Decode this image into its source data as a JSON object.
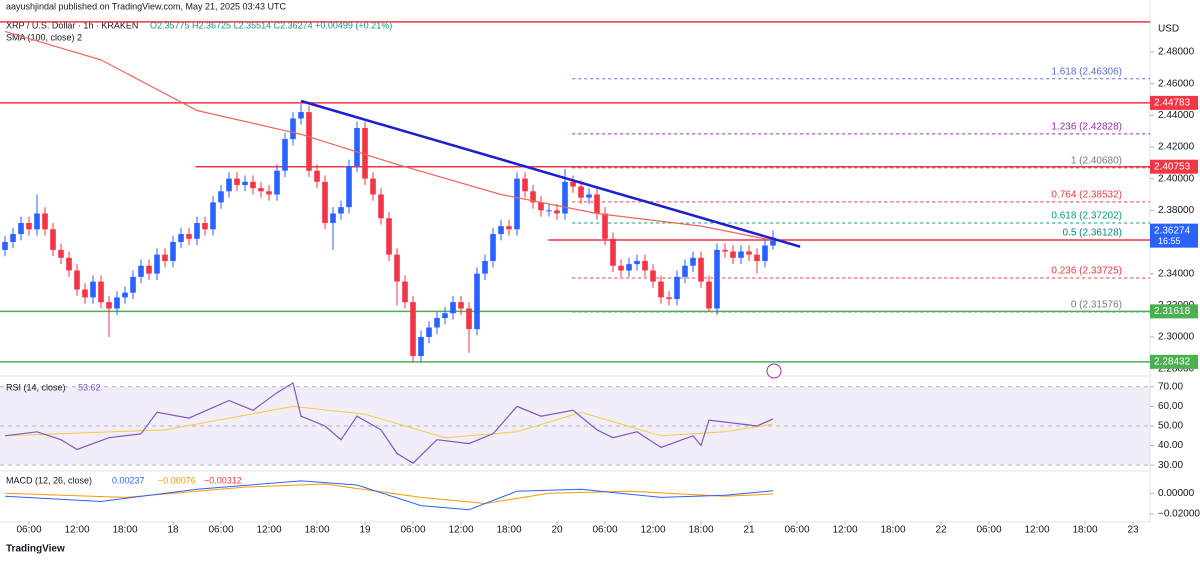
{
  "chart_data": {
    "type": "candlestick",
    "publisher": "aayushjindal published on TradingView.com, May 21, 2025 03:43 UTC",
    "symbol": "XRP / U.S. Dollar · 1h · KRAKEN",
    "ohlc_text": "O2.35775 H2.36725 L2.35514 C2.36274 +0.00499 (+0.21%)",
    "sma_label": "SMA (100, close) 2",
    "currency": "USD",
    "countdown": "16:55",
    "brand": "TradingView",
    "up_color": "#2962ff",
    "down_color": "#f23645",
    "xlim": [
      -0.625,
      143.125
    ],
    "xticks": [
      {
        "value": 3,
        "label": "06:00"
      },
      {
        "value": 9,
        "label": "12:00"
      },
      {
        "value": 15,
        "label": "18:00"
      },
      {
        "value": 21,
        "label": "18"
      },
      {
        "value": 27,
        "label": "06:00"
      },
      {
        "value": 33,
        "label": "12:00"
      },
      {
        "value": 39,
        "label": "18:00"
      },
      {
        "value": 45,
        "label": "19"
      },
      {
        "value": 51,
        "label": "06:00"
      },
      {
        "value": 57,
        "label": "12:00"
      },
      {
        "value": 63,
        "label": "18:00"
      },
      {
        "value": 69,
        "label": "20"
      },
      {
        "value": 75,
        "label": "06:00"
      },
      {
        "value": 81,
        "label": "12:00"
      },
      {
        "value": 87,
        "label": "18:00"
      },
      {
        "value": 93,
        "label": "21"
      },
      {
        "value": 99,
        "label": "06:00"
      },
      {
        "value": 105,
        "label": "12:00"
      },
      {
        "value": 111,
        "label": "18:00"
      },
      {
        "value": 117,
        "label": "22"
      },
      {
        "value": 123,
        "label": "06:00"
      },
      {
        "value": 129,
        "label": "12:00"
      },
      {
        "value": 135,
        "label": "18:00"
      },
      {
        "value": 141,
        "label": "23"
      }
    ],
    "ylim": [
      2.276,
      2.5128
    ],
    "yticks": [
      {
        "value": 2.28,
        "label": "2.28000"
      },
      {
        "value": 2.3,
        "label": "2.30000"
      },
      {
        "value": 2.32,
        "label": "2.32000"
      },
      {
        "value": 2.34,
        "label": "2.34000"
      },
      {
        "value": 2.36,
        "label": "2.36000"
      },
      {
        "value": 2.38,
        "label": "2.38000"
      },
      {
        "value": 2.4,
        "label": "2.40000"
      },
      {
        "value": 2.42,
        "label": "2.42000"
      },
      {
        "value": 2.44,
        "label": "2.44000"
      },
      {
        "value": 2.46,
        "label": "2.46000"
      },
      {
        "value": 2.48,
        "label": "2.48000"
      }
    ],
    "open": [
      2.355,
      2.36,
      2.365,
      2.372,
      2.368,
      2.378,
      2.368,
      2.355,
      2.35,
      2.342,
      2.33,
      2.325,
      2.335,
      2.322,
      2.318,
      2.325,
      2.328,
      2.338,
      2.345,
      2.34,
      2.352,
      2.348,
      2.36,
      2.365,
      2.362,
      2.372,
      2.368,
      2.385,
      2.392,
      2.4,
      2.396,
      2.398,
      2.394,
      2.392,
      2.39,
      2.405,
      2.425,
      2.438,
      2.442,
      2.405,
      2.398,
      2.372,
      2.378,
      2.382,
      2.408,
      2.432,
      2.4,
      2.39,
      2.375,
      2.352,
      2.335,
      2.322,
      2.288,
      2.3,
      2.306,
      2.312,
      2.315,
      2.322,
      2.318,
      2.305,
      2.34,
      2.348,
      2.365,
      2.37,
      2.368,
      2.4,
      2.392,
      2.385,
      2.38,
      2.38,
      2.378,
      2.398,
      2.395,
      2.388,
      2.39,
      2.378,
      2.362,
      2.345,
      2.342,
      2.346,
      2.348,
      2.342,
      2.335,
      2.325,
      2.324,
      2.338,
      2.345,
      2.35,
      2.335,
      2.318,
      2.355,
      2.354,
      2.35,
      2.354,
      2.352,
      2.348,
      2.35775
    ],
    "high": [
      2.364,
      2.369,
      2.376,
      2.376,
      2.39,
      2.382,
      2.372,
      2.359,
      2.354,
      2.346,
      2.334,
      2.339,
      2.339,
      2.326,
      2.329,
      2.332,
      2.342,
      2.349,
      2.349,
      2.356,
      2.356,
      2.364,
      2.369,
      2.369,
      2.376,
      2.376,
      2.389,
      2.396,
      2.404,
      2.404,
      2.402,
      2.402,
      2.398,
      2.396,
      2.409,
      2.429,
      2.442,
      2.447,
      2.446,
      2.409,
      2.402,
      2.382,
      2.386,
      2.412,
      2.436,
      2.436,
      2.404,
      2.394,
      2.379,
      2.356,
      2.339,
      2.326,
      2.304,
      2.31,
      2.316,
      2.319,
      2.326,
      2.326,
      2.322,
      2.344,
      2.352,
      2.369,
      2.374,
      2.374,
      2.404,
      2.404,
      2.396,
      2.389,
      2.384,
      2.384,
      2.406,
      2.402,
      2.399,
      2.394,
      2.394,
      2.382,
      2.366,
      2.349,
      2.35,
      2.352,
      2.352,
      2.346,
      2.339,
      2.329,
      2.342,
      2.349,
      2.354,
      2.354,
      2.339,
      2.359,
      2.359,
      2.358,
      2.358,
      2.358,
      2.356,
      2.362,
      2.36725
    ],
    "low": [
      2.351,
      2.356,
      2.361,
      2.364,
      2.364,
      2.364,
      2.351,
      2.346,
      2.338,
      2.326,
      2.321,
      2.321,
      2.318,
      2.3,
      2.314,
      2.321,
      2.324,
      2.334,
      2.336,
      2.336,
      2.344,
      2.344,
      2.356,
      2.358,
      2.358,
      2.364,
      2.364,
      2.381,
      2.388,
      2.392,
      2.392,
      2.39,
      2.388,
      2.386,
      2.386,
      2.401,
      2.421,
      2.434,
      2.401,
      2.394,
      2.368,
      2.355,
      2.374,
      2.378,
      2.404,
      2.396,
      2.386,
      2.371,
      2.348,
      2.32,
      2.318,
      2.284,
      2.284,
      2.296,
      2.302,
      2.308,
      2.311,
      2.314,
      2.29,
      2.301,
      2.336,
      2.344,
      2.361,
      2.364,
      2.364,
      2.388,
      2.381,
      2.376,
      2.376,
      2.374,
      2.374,
      2.391,
      2.384,
      2.384,
      2.374,
      2.358,
      2.341,
      2.338,
      2.338,
      2.342,
      2.338,
      2.331,
      2.321,
      2.32,
      2.32,
      2.334,
      2.341,
      2.331,
      2.316,
      2.314,
      2.35,
      2.346,
      2.346,
      2.348,
      2.34,
      2.344,
      2.35514
    ],
    "close": [
      2.36,
      2.365,
      2.372,
      2.368,
      2.378,
      2.368,
      2.355,
      2.35,
      2.342,
      2.33,
      2.325,
      2.335,
      2.322,
      2.318,
      2.325,
      2.328,
      2.338,
      2.345,
      2.34,
      2.352,
      2.348,
      2.36,
      2.365,
      2.362,
      2.372,
      2.368,
      2.385,
      2.392,
      2.4,
      2.396,
      2.398,
      2.394,
      2.392,
      2.39,
      2.405,
      2.425,
      2.438,
      2.442,
      2.405,
      2.398,
      2.372,
      2.378,
      2.382,
      2.408,
      2.432,
      2.4,
      2.39,
      2.375,
      2.352,
      2.335,
      2.322,
      2.288,
      2.3,
      2.306,
      2.312,
      2.315,
      2.322,
      2.318,
      2.305,
      2.34,
      2.348,
      2.365,
      2.37,
      2.368,
      2.4,
      2.392,
      2.385,
      2.38,
      2.38,
      2.378,
      2.398,
      2.395,
      2.388,
      2.39,
      2.378,
      2.362,
      2.345,
      2.342,
      2.346,
      2.348,
      2.342,
      2.335,
      2.325,
      2.324,
      2.338,
      2.345,
      2.35,
      2.335,
      2.318,
      2.355,
      2.354,
      2.35,
      2.354,
      2.352,
      2.348,
      2.35775,
      2.36274
    ],
    "sma": {
      "color": "#f0645a",
      "x": [
        0,
        12,
        24,
        37,
        49,
        62,
        74,
        87,
        96
      ],
      "values": [
        2.493,
        2.475,
        2.443,
        2.428,
        2.409,
        2.39,
        2.378,
        2.37,
        2.361
      ]
    },
    "hlines": [
      {
        "value": 2.499,
        "color": "#f23645",
        "start": -0.625,
        "show_label": false
      },
      {
        "value": 2.44783,
        "color": "#f23645",
        "start": -0.625,
        "show_label": true
      },
      {
        "value": 2.40753,
        "color": "#f23645",
        "start": 23.8,
        "show_label": true
      },
      {
        "value": 2.36128,
        "color": "#f23645",
        "start": 67.9,
        "show_label": true
      },
      {
        "value": 2.31618,
        "color": "#4caf50",
        "start": -0.625,
        "show_label": true
      },
      {
        "value": 2.28432,
        "color": "#4caf50",
        "start": -0.625,
        "show_label": true
      }
    ],
    "trendline": {
      "color": "#1a1fd1",
      "x": [
        37,
        99.4
      ],
      "values": [
        2.449,
        2.357
      ]
    },
    "fib": {
      "start": 70.9,
      "levels": [
        {
          "value": 2.46306,
          "label": "1.618 (2.46306)",
          "color": "#5b6bd6"
        },
        {
          "value": 2.42828,
          "label": "1.236 (2.42828)",
          "color": "#9c27b0"
        },
        {
          "value": 2.4068,
          "label": "1 (2.40680)",
          "color": "#787b86"
        },
        {
          "value": 2.38532,
          "label": "0.764 (2.38532)",
          "color": "#f23645"
        },
        {
          "value": 2.37202,
          "label": "0.618 (2.37202)",
          "color": "#089981"
        },
        {
          "value": 2.36128,
          "label": "0.5 (2.36128)",
          "color": "#00897b"
        },
        {
          "value": 2.33725,
          "label": "0.236 (2.33725)",
          "color": "#f23645"
        },
        {
          "value": 2.31576,
          "label": "0 (2.31576)",
          "color": "#787b86"
        }
      ]
    },
    "rsi": {
      "title": "RSI (14, close)",
      "value_text": "53.62",
      "color": "#7e57c2",
      "ma_color": "#f7c948",
      "band_color": "#7e57c2",
      "ylim": [
        27,
        75
      ],
      "yticks": [
        {
          "value": 70,
          "label": "70.00"
        },
        {
          "value": 60,
          "label": "60.00"
        },
        {
          "value": 50,
          "label": "50.00"
        },
        {
          "value": 40,
          "label": "40.00"
        },
        {
          "value": 30,
          "label": "30.00"
        }
      ],
      "x": [
        0,
        4,
        7,
        9,
        13,
        17,
        19,
        23,
        28,
        31,
        34,
        36,
        37,
        40,
        42,
        44,
        47,
        49,
        51,
        54,
        58,
        61,
        64,
        67,
        71,
        74,
        76,
        79,
        82,
        86,
        87,
        88,
        92,
        94,
        96
      ],
      "values": [
        45,
        47,
        43,
        38,
        44,
        46,
        57,
        54,
        63,
        58,
        67,
        72,
        55,
        50,
        43,
        55,
        48,
        36,
        31,
        43,
        41,
        46,
        60,
        55,
        58,
        48,
        44,
        47,
        39,
        45,
        40,
        53,
        51,
        50,
        53.62
      ],
      "ma_x": [
        0,
        20,
        36,
        45,
        55,
        64,
        72,
        82,
        90,
        96
      ],
      "ma_values": [
        45,
        48,
        60,
        56,
        44,
        47,
        57,
        45,
        47,
        51
      ]
    },
    "macd": {
      "title": "MACD (12, 26, close)",
      "values_text": [
        "0.00237",
        "−0.00076",
        "−0.00312"
      ],
      "text_colors": [
        "#2962ff",
        "#ff9800",
        "#f23645"
      ],
      "macd_color": "#2962ff",
      "signal_color": "#ff9800",
      "ylim": [
        -0.027,
        0.0207
      ],
      "yticks": [
        {
          "value": 0,
          "label": "0.00000"
        },
        {
          "value": -0.02,
          "label": "−0.02000"
        }
      ],
      "x": [
        0,
        12,
        24,
        37,
        44,
        52,
        58,
        64,
        72,
        82,
        90,
        96
      ],
      "macd": [
        -0.003,
        -0.008,
        0.004,
        0.012,
        0.008,
        -0.012,
        -0.016,
        0.002,
        0.004,
        -0.004,
        -0.002,
        0.00237
      ],
      "signal_x": [
        0,
        15,
        30,
        40,
        52,
        60,
        68,
        78,
        90,
        96
      ],
      "signal": [
        0.0,
        -0.004,
        0.006,
        0.009,
        -0.004,
        -0.01,
        0.0,
        0.002,
        -0.003,
        -0.00076
      ]
    }
  }
}
